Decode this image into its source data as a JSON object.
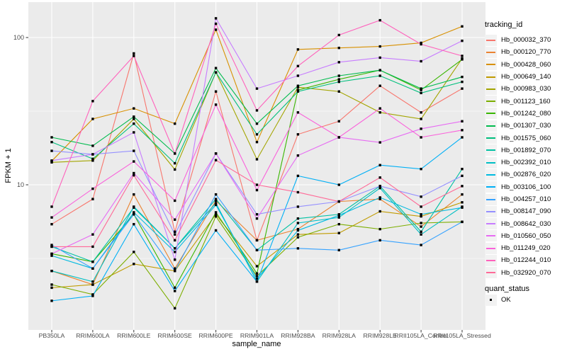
{
  "chart_data": {
    "type": "line",
    "title": "",
    "xlabel": "sample_name",
    "ylabel": "FPKM + 1",
    "yscale": "log10",
    "yticks": [
      10,
      100
    ],
    "ylim": [
      1.05,
      170
    ],
    "grid": true,
    "legend_position": "right",
    "point_shape": "filled-square",
    "categories": [
      "PB350LA",
      "RRIM600LA",
      "RRIM600LE",
      "RRIM600SE",
      "RRIM600PE",
      "RRIM901LA",
      "RRIM928BA",
      "RRIM928LA",
      "RRIM928LE",
      "RRII105LA_Control",
      "RRII105LA_Stressed"
    ],
    "series": [
      {
        "name": "Hb_000032_370",
        "color": "#F8766D",
        "values": [
          5.4,
          8.0,
          78,
          4.8,
          43,
          4.2,
          22,
          27,
          47,
          31,
          45
        ]
      },
      {
        "name": "Hb_000120_770",
        "color": "#EA8331",
        "values": [
          2.6,
          2.1,
          8.6,
          2.7,
          7.8,
          4.2,
          5.0,
          7.7,
          8.0,
          5.2,
          8.6
        ]
      },
      {
        "name": "Hb_000428_060",
        "color": "#D89000",
        "values": [
          14.5,
          28,
          33,
          26,
          113,
          19.5,
          83,
          85,
          87,
          92,
          119
        ]
      },
      {
        "name": "Hb_000649_140",
        "color": "#C09B00",
        "values": [
          2.0,
          2.1,
          2.9,
          2.6,
          6.3,
          2.8,
          4.6,
          4.7,
          6.6,
          6.1,
          7.6
        ]
      },
      {
        "name": "Hb_000983_030",
        "color": "#A3A500",
        "values": [
          14.2,
          14.6,
          28,
          12.7,
          58,
          14.9,
          46,
          43,
          31,
          28,
          72
        ]
      },
      {
        "name": "Hb_001123_160",
        "color": "#7CAE00",
        "values": [
          2.1,
          1.8,
          3.5,
          1.45,
          6.1,
          2.4,
          4.4,
          5.4,
          5.0,
          5.5,
          5.6
        ]
      },
      {
        "name": "Hb_001242_080",
        "color": "#39B600",
        "values": [
          3.4,
          3.0,
          6.3,
          2.0,
          6.5,
          2.5,
          44,
          52,
          60,
          44,
          71
        ]
      },
      {
        "name": "Hb_001307_030",
        "color": "#00BB4E",
        "values": [
          21,
          18.4,
          29,
          16.3,
          62,
          26,
          47,
          55,
          60,
          45,
          54
        ]
      },
      {
        "name": "Hb_001575_060",
        "color": "#00BF7D",
        "values": [
          19.5,
          15,
          26,
          14,
          58,
          22,
          43,
          50,
          55,
          42,
          50
        ]
      },
      {
        "name": "Hb_001892_070",
        "color": "#00C1A3",
        "values": [
          3.8,
          3.0,
          7.0,
          3.7,
          8.0,
          3.6,
          5.9,
          6.3,
          9.8,
          4.8,
          12.8
        ]
      },
      {
        "name": "Hb_002392_010",
        "color": "#00BFC4",
        "values": [
          2.6,
          2.2,
          7.1,
          3.7,
          7.5,
          2.2,
          5.5,
          6.0,
          9.5,
          4.6,
          7.1
        ]
      },
      {
        "name": "Hb_002876_020",
        "color": "#00BAE0",
        "values": [
          3.3,
          2.7,
          6.5,
          3.5,
          7.3,
          2.3,
          4.9,
          6.2,
          8.2,
          6.3,
          7.0
        ]
      },
      {
        "name": "Hb_003106_100",
        "color": "#00B0F6",
        "values": [
          1.63,
          1.76,
          5.4,
          1.9,
          4.9,
          2.2,
          11.5,
          10,
          13.6,
          12.8,
          21
        ]
      },
      {
        "name": "Hb_004257_010",
        "color": "#35A2FF",
        "values": [
          3.9,
          2.7,
          6.3,
          2.6,
          8.6,
          3.6,
          3.7,
          3.6,
          4.2,
          3.9,
          5.6
        ]
      },
      {
        "name": "Hb_008147_090",
        "color": "#9590FF",
        "values": [
          17,
          16.1,
          17,
          4.6,
          16.3,
          6.3,
          7.1,
          7.7,
          9.8,
          8.3,
          11.5
        ]
      },
      {
        "name": "Hb_008642_030",
        "color": "#C77CFF",
        "values": [
          14.6,
          16.1,
          22.7,
          3.1,
          135,
          45,
          55,
          68,
          73,
          69,
          95
        ]
      },
      {
        "name": "Hb_010560_050",
        "color": "#E76BF3",
        "values": [
          3.4,
          4.6,
          12,
          5.8,
          16.3,
          5.9,
          15.8,
          21,
          19.4,
          24,
          27
        ]
      },
      {
        "name": "Hb_011249_020",
        "color": "#FA62DB",
        "values": [
          6.0,
          9.4,
          14.4,
          7.8,
          35,
          9.2,
          31,
          21,
          33,
          21,
          23.5
        ]
      },
      {
        "name": "Hb_012244_010",
        "color": "#FF62BC",
        "values": [
          7.1,
          37,
          75,
          16.3,
          124,
          32,
          64,
          104,
          131,
          90,
          75
        ]
      },
      {
        "name": "Hb_032920_070",
        "color": "#FF6A98",
        "values": [
          3.8,
          3.8,
          11.6,
          4.2,
          14.7,
          10,
          8.9,
          7.7,
          11.2,
          7.1,
          9.8
        ]
      }
    ]
  },
  "legend": {
    "title": "tracking_id"
  },
  "quant_legend": {
    "title": "quant_status",
    "ok_label": "OK"
  },
  "style": {
    "panel_bg": "#EBEBEB",
    "grid_color": "#FFFFFF",
    "point_color": "#000000",
    "tick_color": "#333333",
    "tick_label_color": "#4D4D4D",
    "legend_key_bg": "#F2F2F2"
  }
}
